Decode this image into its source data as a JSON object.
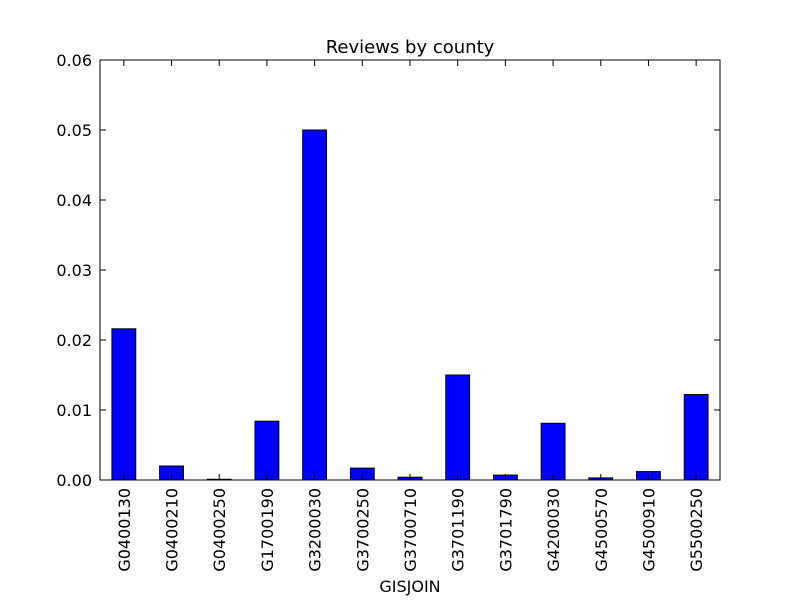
{
  "chart_data": {
    "type": "bar",
    "title": "Reviews by county",
    "xlabel": "GISJOIN",
    "ylabel": "",
    "ylim": [
      0,
      0.06
    ],
    "yticks": [
      "0.00",
      "0.01",
      "0.02",
      "0.03",
      "0.04",
      "0.05",
      "0.06"
    ],
    "yticks_values": [
      0,
      0.01,
      0.02,
      0.03,
      0.04,
      0.05,
      0.06
    ],
    "categories": [
      "G0400130",
      "G0400210",
      "G0400250",
      "G1700190",
      "G3200030",
      "G3700250",
      "G3700710",
      "G3701190",
      "G3701790",
      "G4200030",
      "G4500570",
      "G4500910",
      "G5500250"
    ],
    "values": [
      0.0216,
      0.002,
      0.0001,
      0.0084,
      0.05,
      0.0017,
      0.0004,
      0.015,
      0.0007,
      0.0081,
      0.0003,
      0.0012,
      0.0122
    ],
    "bar_color": "#0000ff",
    "edge_color": "#000000",
    "grid": false,
    "legend": "none"
  }
}
